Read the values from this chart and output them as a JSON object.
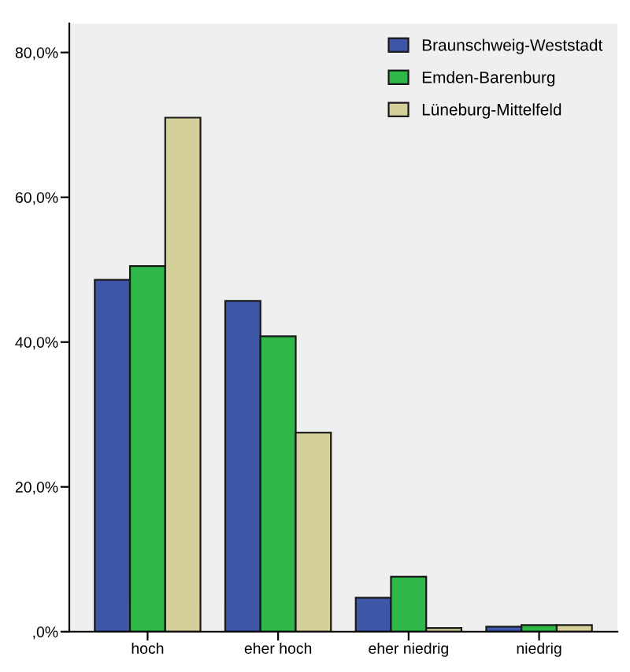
{
  "chart_data": {
    "type": "bar",
    "categories": [
      "hoch",
      "eher hoch",
      "eher niedrig",
      "niedrig"
    ],
    "series": [
      {
        "name": "Braunschweig-Weststadt",
        "color": "#3d56a6",
        "values": [
          48.6,
          45.7,
          4.7,
          0.7
        ]
      },
      {
        "name": "Emden-Barenburg",
        "color": "#2fb84a",
        "values": [
          50.5,
          40.8,
          7.6,
          0.9
        ]
      },
      {
        "name": "Lüneburg-Mittelfeld",
        "color": "#d5d09a",
        "values": [
          71.0,
          27.5,
          0.5,
          0.9
        ]
      }
    ],
    "ylim": [
      0,
      84
    ],
    "yticks": [
      {
        "value": 0,
        "label": ",0%"
      },
      {
        "value": 20,
        "label": "20,0%"
      },
      {
        "value": 40,
        "label": "40,0%"
      },
      {
        "value": 60,
        "label": "60,0%"
      },
      {
        "value": 80,
        "label": "80,0%"
      }
    ],
    "legend": "top right",
    "grid": false
  }
}
